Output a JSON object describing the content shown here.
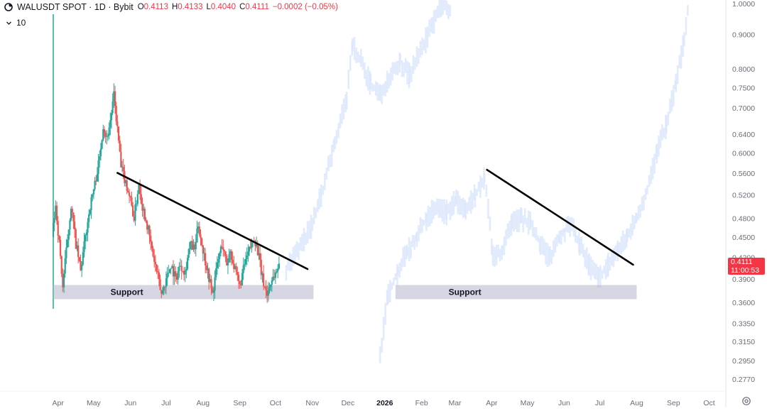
{
  "header": {
    "title": "WALUSDT SPOT · 1D · Bybit",
    "open_key": "O",
    "open_val": "0.4113",
    "high_key": "H",
    "high_val": "0.4133",
    "low_key": "L",
    "low_val": "0.4040",
    "close_key": "C",
    "close_val": "0.4111",
    "change": "−0.0002 (−0.05%)",
    "indicator_value": "10",
    "icons": [
      "bybit-logo-icon",
      "chevron-down-icon"
    ]
  },
  "price_tag": {
    "price": "0.4111",
    "countdown": "11:00:53",
    "color": "#f23645"
  },
  "colors": {
    "up": "#26a69a",
    "down": "#ef5350",
    "ghost": "#dbe6fb",
    "trendline": "#000000",
    "support_box": "#b2b5c8",
    "axis_text": "#6a6d78"
  },
  "chart_data": {
    "type": "candlestick",
    "scale": "log",
    "ylim": [
      0.26,
      1.02
    ],
    "y_ticks": [
      "1.0000",
      "0.9000",
      "0.8000",
      "0.7500",
      "0.7000",
      "0.6400",
      "0.6000",
      "0.5600",
      "0.5200",
      "0.4800",
      "0.4500",
      "0.4200",
      "0.3900",
      "0.3600",
      "0.3350",
      "0.3150",
      "0.2950",
      "0.2770"
    ],
    "x_ticks": [
      "Apr",
      "May",
      "Jun",
      "Jul",
      "Aug",
      "Sep",
      "Oct",
      "Nov",
      "Dec",
      "2026",
      "Feb",
      "Mar",
      "Apr",
      "May",
      "Jun",
      "Jul",
      "Aug",
      "Sep",
      "Oct"
    ],
    "x_range_start": "2025-03-28",
    "x_range_end": "2026-10-15",
    "candles_start": "2025-03-28",
    "anchors": [
      [
        "2025-03-28",
        0.45
      ],
      [
        "2025-03-31",
        0.5
      ],
      [
        "2025-04-03",
        0.44
      ],
      [
        "2025-04-06",
        0.38
      ],
      [
        "2025-04-09",
        0.43
      ],
      [
        "2025-04-13",
        0.5
      ],
      [
        "2025-04-17",
        0.44
      ],
      [
        "2025-04-21",
        0.4
      ],
      [
        "2025-04-25",
        0.45
      ],
      [
        "2025-04-29",
        0.5
      ],
      [
        "2025-05-03",
        0.54
      ],
      [
        "2025-05-07",
        0.59
      ],
      [
        "2025-05-10",
        0.66
      ],
      [
        "2025-05-13",
        0.63
      ],
      [
        "2025-05-16",
        0.67
      ],
      [
        "2025-05-19",
        0.73
      ],
      [
        "2025-05-22",
        0.65
      ],
      [
        "2025-05-25",
        0.57
      ],
      [
        "2025-05-28",
        0.55
      ],
      [
        "2025-06-01",
        0.52
      ],
      [
        "2025-06-05",
        0.48
      ],
      [
        "2025-06-09",
        0.54
      ],
      [
        "2025-06-12",
        0.5
      ],
      [
        "2025-06-16",
        0.47
      ],
      [
        "2025-06-20",
        0.43
      ],
      [
        "2025-06-24",
        0.4
      ],
      [
        "2025-06-28",
        0.37
      ],
      [
        "2025-07-02",
        0.39
      ],
      [
        "2025-07-06",
        0.41
      ],
      [
        "2025-07-10",
        0.39
      ],
      [
        "2025-07-14",
        0.41
      ],
      [
        "2025-07-18",
        0.4
      ],
      [
        "2025-07-22",
        0.44
      ],
      [
        "2025-07-26",
        0.43
      ],
      [
        "2025-07-29",
        0.47
      ],
      [
        "2025-08-02",
        0.43
      ],
      [
        "2025-08-06",
        0.4
      ],
      [
        "2025-08-10",
        0.37
      ],
      [
        "2025-08-14",
        0.41
      ],
      [
        "2025-08-18",
        0.44
      ],
      [
        "2025-08-22",
        0.41
      ],
      [
        "2025-08-25",
        0.43
      ],
      [
        "2025-08-29",
        0.4
      ],
      [
        "2025-09-02",
        0.38
      ],
      [
        "2025-09-06",
        0.41
      ],
      [
        "2025-09-10",
        0.43
      ],
      [
        "2025-09-14",
        0.45
      ],
      [
        "2025-09-17",
        0.43
      ],
      [
        "2025-09-21",
        0.39
      ],
      [
        "2025-09-25",
        0.37
      ],
      [
        "2025-09-29",
        0.39
      ],
      [
        "2025-10-03",
        0.4
      ],
      [
        "2025-10-05",
        0.4111
      ]
    ],
    "annotations": {
      "support_label": "Support",
      "support_zone_1": {
        "from": "2025-03-28",
        "to": "2025-11-02",
        "low": 0.364,
        "high": 0.382
      },
      "support_zone_2": {
        "from": "2026-01-10",
        "to": "2026-08-01",
        "low": 0.364,
        "high": 0.382
      },
      "trendline_1": {
        "from": [
          "2025-05-21",
          0.5605
        ],
        "to": [
          "2025-10-28",
          0.4035
        ]
      },
      "trendline_2": {
        "from": [
          "2026-03-28",
          0.5665
        ],
        "to": [
          "2026-07-29",
          0.4095
        ]
      }
    }
  }
}
